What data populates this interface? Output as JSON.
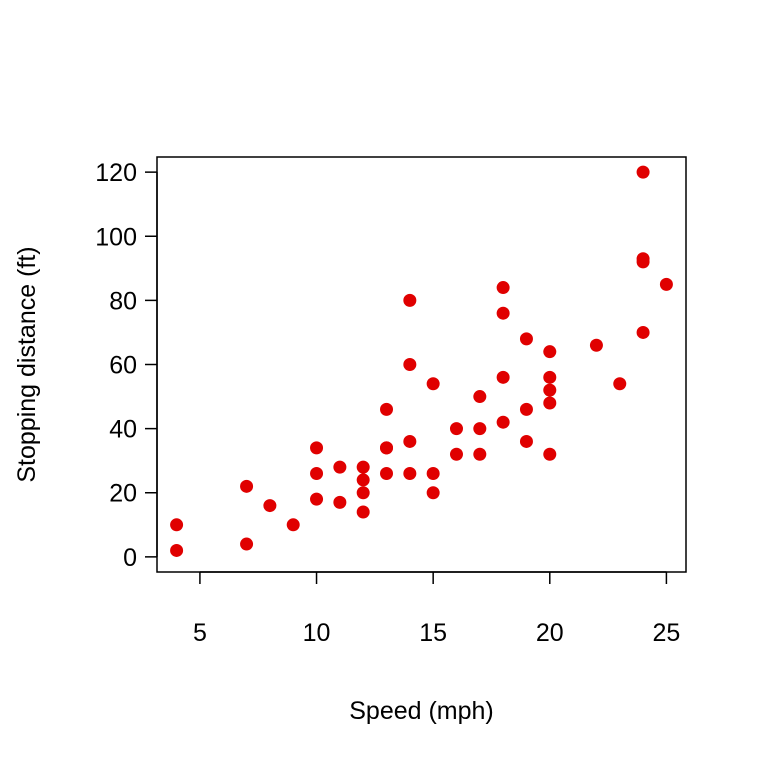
{
  "chart_data": {
    "type": "scatter",
    "title": "",
    "xlabel": "Speed (mph)",
    "ylabel": "Stopping distance (ft)",
    "xlim": [
      3.16,
      25.84
    ],
    "ylim": [
      -4.72,
      124.72
    ],
    "x_ticks": [
      5,
      10,
      15,
      20,
      25
    ],
    "y_ticks": [
      0,
      20,
      40,
      60,
      80,
      100,
      120
    ],
    "grid": false,
    "legend": "none",
    "marker_color": "#e00000",
    "series": [
      {
        "x": [
          4,
          4,
          7,
          7,
          8,
          9,
          10,
          10,
          10,
          11,
          11,
          12,
          12,
          12,
          12,
          13,
          13,
          13,
          13,
          14,
          14,
          14,
          14,
          15,
          15,
          15,
          16,
          16,
          17,
          17,
          17,
          18,
          18,
          18,
          18,
          19,
          19,
          19,
          20,
          20,
          20,
          20,
          20,
          22,
          23,
          24,
          24,
          24,
          24,
          25
        ],
        "y": [
          2,
          10,
          4,
          22,
          16,
          10,
          18,
          26,
          34,
          17,
          28,
          14,
          20,
          24,
          28,
          26,
          34,
          34,
          46,
          26,
          36,
          60,
          80,
          20,
          26,
          54,
          32,
          40,
          32,
          40,
          50,
          42,
          56,
          76,
          84,
          36,
          46,
          68,
          32,
          48,
          52,
          56,
          64,
          66,
          54,
          70,
          92,
          93,
          120,
          85
        ]
      }
    ]
  }
}
